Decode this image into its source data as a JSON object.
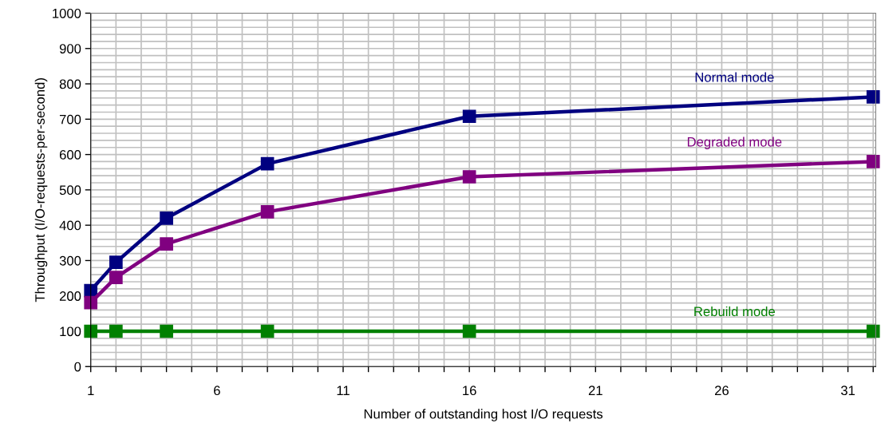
{
  "chart_data": {
    "type": "line",
    "xlabel": "Number of outstanding host I/O requests",
    "ylabel": "Throughput (I/O-requests-per-second)",
    "x": [
      1,
      2,
      4,
      8,
      16,
      32
    ],
    "series": [
      {
        "name": "Normal mode",
        "color": "#000080",
        "values": [
          215,
          295,
          420,
          574,
          708,
          763
        ]
      },
      {
        "name": "Degraded mode",
        "color": "#800080",
        "values": [
          181,
          252,
          347,
          438,
          537,
          580
        ]
      },
      {
        "name": "Rebuild mode",
        "color": "#008000",
        "values": [
          100,
          100,
          100,
          100,
          100,
          100
        ]
      }
    ],
    "xlim": [
      1,
      32.1
    ],
    "ylim": [
      0,
      1000
    ],
    "xticks": [
      1,
      {
        "value": 2,
        "label": null
      },
      {
        "value": 3,
        "label": null
      },
      {
        "value": 4,
        "label": null
      },
      {
        "value": 5,
        "label": null
      },
      6,
      {
        "value": 7,
        "label": null
      },
      {
        "value": 8,
        "label": null
      },
      {
        "value": 9,
        "label": null
      },
      {
        "value": 10,
        "label": null
      },
      11,
      {
        "value": 12,
        "label": null
      },
      {
        "value": 13,
        "label": null
      },
      {
        "value": 14,
        "label": null
      },
      {
        "value": 15,
        "label": null
      },
      16,
      {
        "value": 17,
        "label": null
      },
      {
        "value": 18,
        "label": null
      },
      {
        "value": 19,
        "label": null
      },
      {
        "value": 20,
        "label": null
      },
      21,
      {
        "value": 22,
        "label": null
      },
      {
        "value": 23,
        "label": null
      },
      {
        "value": 24,
        "label": null
      },
      {
        "value": 25,
        "label": null
      },
      26,
      {
        "value": 27,
        "label": null
      },
      {
        "value": 28,
        "label": null
      },
      {
        "value": 29,
        "label": null
      },
      {
        "value": 30,
        "label": null
      },
      31,
      {
        "value": 32,
        "label": null
      }
    ],
    "yticks": [
      0,
      100,
      200,
      300,
      400,
      500,
      600,
      700,
      800,
      900,
      1000
    ],
    "grid": true,
    "legend": false,
    "marker": "square",
    "line_style": "solid"
  }
}
